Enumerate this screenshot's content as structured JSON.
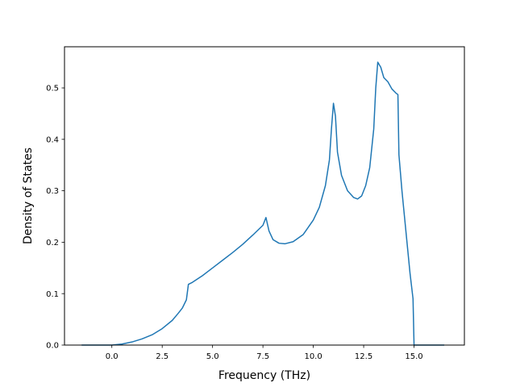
{
  "chart_data": {
    "type": "line",
    "title": "",
    "xlabel": "Frequency (THz)",
    "ylabel": "Density of States",
    "xlim": [
      -2.35,
      17.5
    ],
    "ylim": [
      0,
      0.58
    ],
    "xticks": [
      0.0,
      2.5,
      5.0,
      7.5,
      10.0,
      12.5,
      15.0
    ],
    "xtick_labels": [
      "0.0",
      "2.5",
      "5.0",
      "7.5",
      "10.0",
      "12.5",
      "15.0"
    ],
    "yticks": [
      0.0,
      0.1,
      0.2,
      0.3,
      0.4,
      0.5
    ],
    "ytick_labels": [
      "0.0",
      "0.1",
      "0.2",
      "0.3",
      "0.4",
      "0.5"
    ],
    "grid": false,
    "legend": "none",
    "series": [
      {
        "color": "#1f77b4",
        "x": [
          -1.5,
          0.0,
          0.5,
          1.0,
          1.5,
          2.0,
          2.5,
          3.0,
          3.3,
          3.5,
          3.7,
          3.8,
          4.0,
          4.5,
          5.0,
          5.5,
          6.0,
          6.5,
          7.0,
          7.5,
          7.65,
          7.8,
          8.0,
          8.3,
          8.6,
          9.0,
          9.5,
          10.0,
          10.3,
          10.6,
          10.8,
          10.9,
          11.0,
          11.1,
          11.2,
          11.4,
          11.7,
          12.0,
          12.2,
          12.4,
          12.6,
          12.8,
          13.0,
          13.1,
          13.2,
          13.35,
          13.5,
          13.7,
          13.9,
          14.1,
          14.2,
          14.25,
          14.4,
          14.6,
          14.8,
          14.95,
          15.0,
          15.5,
          16.5
        ],
        "y": [
          0.0,
          0.0,
          0.002,
          0.006,
          0.012,
          0.02,
          0.032,
          0.048,
          0.062,
          0.072,
          0.088,
          0.118,
          0.122,
          0.135,
          0.15,
          0.165,
          0.18,
          0.196,
          0.214,
          0.233,
          0.248,
          0.222,
          0.205,
          0.198,
          0.197,
          0.201,
          0.215,
          0.243,
          0.268,
          0.31,
          0.36,
          0.42,
          0.47,
          0.445,
          0.375,
          0.33,
          0.3,
          0.287,
          0.284,
          0.29,
          0.31,
          0.345,
          0.42,
          0.5,
          0.55,
          0.54,
          0.52,
          0.512,
          0.498,
          0.49,
          0.487,
          0.37,
          0.3,
          0.22,
          0.14,
          0.09,
          0.0,
          0.0,
          0.0
        ]
      }
    ]
  }
}
